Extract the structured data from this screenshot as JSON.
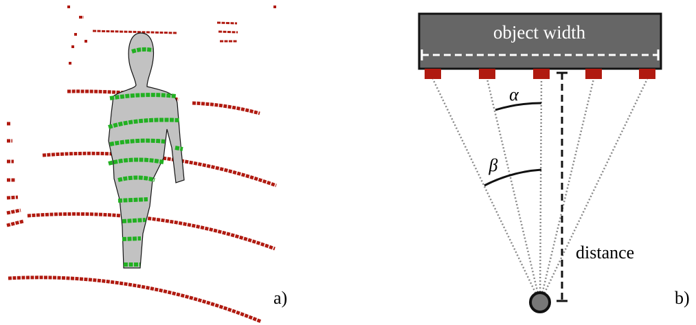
{
  "panel_a": {
    "label": "a)"
  },
  "panel_b": {
    "label": "b)",
    "object_label": "object width",
    "alpha": "α",
    "beta": "β",
    "distance_label": "distance"
  }
}
